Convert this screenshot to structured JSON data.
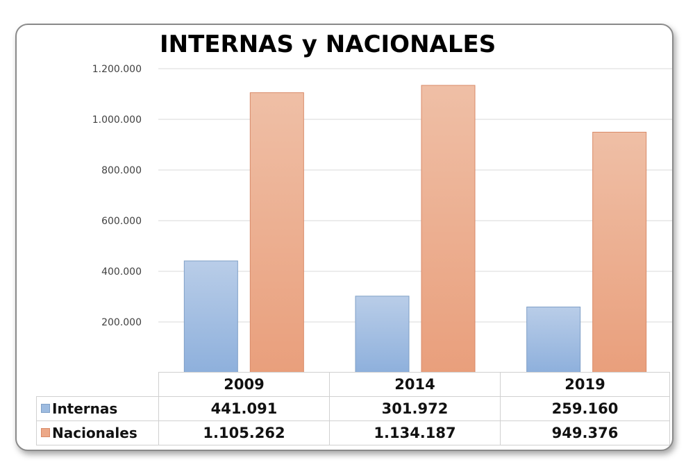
{
  "chart_data": {
    "type": "bar",
    "title": "INTERNAS y NACIONALES",
    "categories": [
      "2009",
      "2014",
      "2019"
    ],
    "series": [
      {
        "name": "Internas",
        "values": [
          441091,
          301972,
          259160
        ],
        "color": "#9dbbe0",
        "labels": [
          "441.091",
          "301.972",
          "259.160"
        ]
      },
      {
        "name": "Nacionales",
        "values": [
          1105262,
          1134187,
          949376
        ],
        "color": "#eca888",
        "labels": [
          "1.105.262",
          "1.134.187",
          "949.376"
        ]
      }
    ],
    "ylim": [
      0,
      1200000
    ],
    "yticks": [
      0,
      200000,
      400000,
      600000,
      800000,
      1000000,
      1200000
    ],
    "ytick_labels": [
      "-",
      "200.000",
      "400.000",
      "600.000",
      "800.000",
      "1.000.000",
      "1.200.000"
    ],
    "grid": true,
    "legend": "data-table"
  }
}
